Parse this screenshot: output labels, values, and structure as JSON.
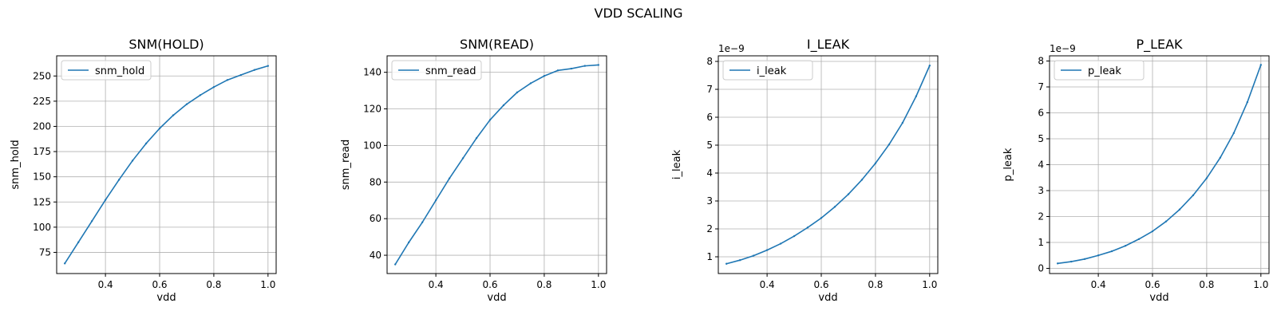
{
  "figure": {
    "title": "VDD SCALING"
  },
  "chart_data": [
    {
      "type": "line",
      "title": "SNM(HOLD)",
      "xlabel": "vdd",
      "ylabel": "snm_hold",
      "x": [
        0.25,
        0.3,
        0.35,
        0.4,
        0.45,
        0.5,
        0.55,
        0.6,
        0.65,
        0.7,
        0.75,
        0.8,
        0.85,
        0.9,
        0.95,
        1.0
      ],
      "series": [
        {
          "name": "snm_hold",
          "color": "#1f77b4",
          "values": [
            64,
            85,
            106,
            127,
            147,
            166,
            183,
            198,
            211,
            222,
            231,
            239,
            246,
            251,
            256,
            260
          ]
        }
      ],
      "xlim": [
        0.22,
        1.03
      ],
      "ylim": [
        54,
        270
      ],
      "xticks": [
        0.4,
        0.6,
        0.8,
        1.0
      ],
      "xtick_labels": [
        "0.4",
        "0.6",
        "0.8",
        "1.0"
      ],
      "yticks": [
        75,
        100,
        125,
        150,
        175,
        200,
        225,
        250
      ],
      "ytick_labels": [
        "75",
        "100",
        "125",
        "150",
        "175",
        "200",
        "225",
        "250"
      ],
      "offset_text": "",
      "grid": true,
      "legend": "upper-left"
    },
    {
      "type": "line",
      "title": "SNM(READ)",
      "xlabel": "vdd",
      "ylabel": "snm_read",
      "x": [
        0.25,
        0.3,
        0.35,
        0.4,
        0.45,
        0.5,
        0.55,
        0.6,
        0.65,
        0.7,
        0.75,
        0.8,
        0.85,
        0.9,
        0.95,
        1.0
      ],
      "series": [
        {
          "name": "snm_read",
          "color": "#1f77b4",
          "values": [
            35,
            47,
            58,
            70,
            82,
            93,
            104,
            114,
            122,
            129,
            134,
            138,
            141,
            142,
            143.5,
            144
          ]
        }
      ],
      "xlim": [
        0.22,
        1.03
      ],
      "ylim": [
        30,
        149
      ],
      "xticks": [
        0.4,
        0.6,
        0.8,
        1.0
      ],
      "xtick_labels": [
        "0.4",
        "0.6",
        "0.8",
        "1.0"
      ],
      "yticks": [
        40,
        60,
        80,
        100,
        120,
        140
      ],
      "ytick_labels": [
        "40",
        "60",
        "80",
        "100",
        "120",
        "140"
      ],
      "offset_text": "",
      "grid": true,
      "legend": "upper-left"
    },
    {
      "type": "line",
      "title": "I_LEAK",
      "xlabel": "vdd",
      "ylabel": "i_leak",
      "x": [
        0.25,
        0.3,
        0.35,
        0.4,
        0.45,
        0.5,
        0.55,
        0.6,
        0.65,
        0.7,
        0.75,
        0.8,
        0.85,
        0.9,
        0.95,
        1.0
      ],
      "series": [
        {
          "name": "i_leak",
          "color": "#1f77b4",
          "values": [
            7.5e-10,
            8.8e-10,
            1.04e-09,
            1.24e-09,
            1.47e-09,
            1.74e-09,
            2.05e-09,
            2.39e-09,
            2.79e-09,
            3.24e-09,
            3.76e-09,
            4.35e-09,
            5.02e-09,
            5.8e-09,
            6.75e-09,
            7.85e-09
          ]
        }
      ],
      "xlim": [
        0.22,
        1.03
      ],
      "ylim": [
        4e-10,
        8.2e-09
      ],
      "xticks": [
        0.4,
        0.6,
        0.8,
        1.0
      ],
      "xtick_labels": [
        "0.4",
        "0.6",
        "0.8",
        "1.0"
      ],
      "yticks": [
        1e-09,
        2e-09,
        3e-09,
        4e-09,
        5e-09,
        6e-09,
        7e-09,
        8e-09
      ],
      "ytick_labels": [
        "1",
        "2",
        "3",
        "4",
        "5",
        "6",
        "7",
        "8"
      ],
      "offset_text": "1e−9",
      "grid": true,
      "legend": "upper-left"
    },
    {
      "type": "line",
      "title": "P_LEAK",
      "xlabel": "vdd",
      "ylabel": "p_leak",
      "x": [
        0.25,
        0.3,
        0.35,
        0.4,
        0.45,
        0.5,
        0.55,
        0.6,
        0.65,
        0.7,
        0.75,
        0.8,
        0.85,
        0.9,
        0.95,
        1.0
      ],
      "series": [
        {
          "name": "p_leak",
          "color": "#1f77b4",
          "values": [
            1.9e-10,
            2.6e-10,
            3.6e-10,
            5e-10,
            6.6e-10,
            8.7e-10,
            1.13e-09,
            1.43e-09,
            1.81e-09,
            2.27e-09,
            2.82e-09,
            3.48e-09,
            4.27e-09,
            5.22e-09,
            6.41e-09,
            7.85e-09
          ]
        }
      ],
      "xlim": [
        0.22,
        1.03
      ],
      "ylim": [
        -2e-10,
        8.2e-09
      ],
      "xticks": [
        0.4,
        0.6,
        0.8,
        1.0
      ],
      "xtick_labels": [
        "0.4",
        "0.6",
        "0.8",
        "1.0"
      ],
      "yticks": [
        0,
        1e-09,
        2e-09,
        3e-09,
        4e-09,
        5e-09,
        6e-09,
        7e-09,
        8e-09
      ],
      "ytick_labels": [
        "0",
        "1",
        "2",
        "3",
        "4",
        "5",
        "6",
        "7",
        "8"
      ],
      "offset_text": "1e−9",
      "grid": true,
      "legend": "upper-left"
    }
  ]
}
